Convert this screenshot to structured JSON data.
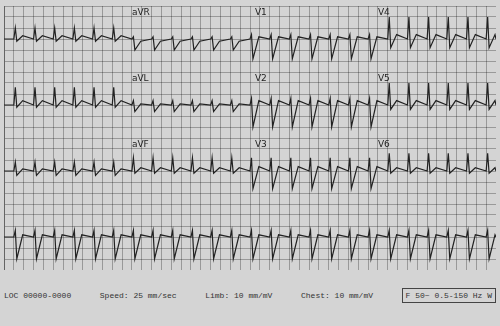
{
  "chart_data": [
    {
      "type": "line",
      "color": "#222222",
      "grid": true,
      "tick_labels": false,
      "xlim": [
        0,
        10
      ],
      "ylim": [
        -1.5,
        1.5
      ],
      "xticks": [
        0,
        0.2,
        0.4,
        0.6,
        0.8,
        1,
        1.2,
        1.4,
        1.6,
        1.8,
        2,
        2.2,
        2.4,
        2.6,
        2.8,
        3,
        3.2,
        3.4,
        3.6,
        3.8,
        4,
        4.2,
        4.4,
        4.6,
        4.8,
        5,
        5.2,
        5.4,
        5.6,
        5.8,
        6,
        6.2,
        6.4,
        6.6,
        6.8,
        7,
        7.2,
        7.4,
        7.6,
        7.8,
        8,
        8.2,
        8.4,
        8.6,
        8.8,
        9,
        9.2,
        9.4,
        9.6,
        9.8,
        10
      ],
      "yticks": [
        -1.5,
        -1,
        -0.5,
        0,
        0.5,
        1,
        1.5
      ],
      "annotations": [
        {
          "x": 2.6,
          "text": "aVR"
        },
        {
          "x": 5.1,
          "text": "V1"
        },
        {
          "x": 7.6,
          "text": "V4"
        }
      ],
      "x": [
        0,
        0.2,
        0.23,
        0.26,
        0.38,
        0.6,
        0.63,
        0.66,
        0.78,
        1.0,
        1.03,
        1.06,
        1.18,
        1.4,
        1.43,
        1.46,
        1.58,
        1.8,
        1.83,
        1.86,
        1.98,
        2.2,
        2.23,
        2.26,
        2.38,
        2.6,
        2.63,
        2.66,
        2.78,
        3.0,
        3.03,
        3.06,
        3.18,
        3.4,
        3.43,
        3.46,
        3.58,
        3.8,
        3.83,
        3.86,
        3.98,
        4.2,
        4.23,
        4.26,
        4.38,
        4.6,
        4.63,
        4.66,
        4.78,
        5.0,
        5.03,
        5.06,
        5.18,
        5.4,
        5.43,
        5.46,
        5.58,
        5.8,
        5.83,
        5.86,
        5.98,
        6.2,
        6.23,
        6.26,
        6.38,
        6.6,
        6.63,
        6.66,
        6.78,
        7.0,
        7.03,
        7.06,
        7.18,
        7.4,
        7.43,
        7.46,
        7.58,
        7.8,
        7.83,
        7.86,
        7.98,
        8.2,
        8.23,
        8.26,
        8.38,
        8.6,
        8.63,
        8.66,
        8.78,
        9.0,
        9.03,
        9.06,
        9.18,
        9.4,
        9.43,
        9.46,
        9.58,
        9.8,
        9.83,
        9.86,
        9.98,
        10
      ],
      "values": [
        0,
        0,
        0.5,
        -0.1,
        0.15,
        0,
        0.5,
        -0.1,
        0.15,
        0,
        0.5,
        -0.1,
        0.15,
        0,
        0.5,
        -0.1,
        0.15,
        0,
        0.5,
        -0.1,
        0.15,
        0,
        0.5,
        -0.1,
        0.15,
        0,
        0.1,
        -0.5,
        -0.1,
        0,
        0.1,
        -0.5,
        -0.1,
        0,
        0.1,
        -0.5,
        -0.1,
        0,
        0.1,
        -0.5,
        -0.1,
        0,
        0.1,
        -0.5,
        -0.1,
        0,
        0.1,
        -0.5,
        -0.1,
        0,
        0.2,
        -0.9,
        0.1,
        0,
        0.2,
        -0.9,
        0.1,
        0,
        0.2,
        -0.9,
        0.1,
        0,
        0.2,
        -0.9,
        0.1,
        0,
        0.2,
        -0.9,
        0.1,
        0,
        0.2,
        -0.9,
        0.1,
        0,
        0.2,
        -0.9,
        0.1,
        0,
        1.0,
        -0.4,
        0.2,
        0,
        1.0,
        -0.4,
        0.2,
        0,
        1.0,
        -0.4,
        0.2,
        0,
        1.0,
        -0.4,
        0.2,
        0,
        1.0,
        -0.4,
        0.2,
        0,
        1.0,
        -0.4,
        0.2,
        0
      ]
    },
    {
      "type": "line",
      "color": "#222222",
      "grid": true,
      "tick_labels": false,
      "xlim": [
        0,
        10
      ],
      "ylim": [
        -1.5,
        1.5
      ],
      "xticks": [
        0,
        0.2,
        0.4,
        0.6,
        0.8,
        1,
        1.2,
        1.4,
        1.6,
        1.8,
        2,
        2.2,
        2.4,
        2.6,
        2.8,
        3,
        3.2,
        3.4,
        3.6,
        3.8,
        4,
        4.2,
        4.4,
        4.6,
        4.8,
        5,
        5.2,
        5.4,
        5.6,
        5.8,
        6,
        6.2,
        6.4,
        6.6,
        6.8,
        7,
        7.2,
        7.4,
        7.6,
        7.8,
        8,
        8.2,
        8.4,
        8.6,
        8.8,
        9,
        9.2,
        9.4,
        9.6,
        9.8,
        10
      ],
      "yticks": [
        -1.5,
        -1,
        -0.5,
        0,
        0.5,
        1,
        1.5
      ],
      "annotations": [
        {
          "x": 2.6,
          "text": "aVL"
        },
        {
          "x": 5.1,
          "text": "V2"
        },
        {
          "x": 7.6,
          "text": "V5"
        }
      ],
      "x": [
        0,
        0.2,
        0.23,
        0.26,
        0.38,
        0.6,
        0.63,
        0.66,
        0.78,
        1.0,
        1.03,
        1.06,
        1.18,
        1.4,
        1.43,
        1.46,
        1.58,
        1.8,
        1.83,
        1.86,
        1.98,
        2.2,
        2.23,
        2.26,
        2.38,
        2.6,
        2.63,
        2.66,
        2.78,
        3.0,
        3.03,
        3.06,
        3.18,
        3.4,
        3.43,
        3.46,
        3.58,
        3.8,
        3.83,
        3.86,
        3.98,
        4.2,
        4.23,
        4.26,
        4.38,
        4.6,
        4.63,
        4.66,
        4.78,
        5.0,
        5.03,
        5.06,
        5.18,
        5.4,
        5.43,
        5.46,
        5.58,
        5.8,
        5.83,
        5.86,
        5.98,
        6.2,
        6.23,
        6.26,
        6.38,
        6.6,
        6.63,
        6.66,
        6.78,
        7.0,
        7.03,
        7.06,
        7.18,
        7.4,
        7.43,
        7.46,
        7.58,
        7.8,
        7.83,
        7.86,
        7.98,
        8.2,
        8.23,
        8.26,
        8.38,
        8.6,
        8.63,
        8.66,
        8.78,
        9.0,
        9.03,
        9.06,
        9.18,
        9.4,
        9.43,
        9.46,
        9.58,
        9.8,
        9.83,
        9.86,
        9.98,
        10
      ],
      "values": [
        0,
        0,
        0.8,
        -0.1,
        0.2,
        0,
        0.8,
        -0.1,
        0.2,
        0,
        0.8,
        -0.1,
        0.2,
        0,
        0.8,
        -0.1,
        0.2,
        0,
        0.8,
        -0.1,
        0.2,
        0,
        0.8,
        -0.1,
        0.2,
        0,
        0.2,
        -0.3,
        0.05,
        0,
        0.2,
        -0.3,
        0.05,
        0,
        0.2,
        -0.3,
        0.05,
        0,
        0.2,
        -0.3,
        0.05,
        0,
        0.2,
        -0.3,
        0.05,
        0,
        0.2,
        -0.3,
        0.05,
        0,
        0.3,
        -1.0,
        0.2,
        0,
        0.3,
        -1.0,
        0.2,
        0,
        0.3,
        -1.0,
        0.2,
        0,
        0.3,
        -1.0,
        0.2,
        0,
        0.3,
        -1.0,
        0.2,
        0,
        0.3,
        -1.0,
        0.2,
        0,
        0.3,
        -1.0,
        0.2,
        0,
        1.0,
        -0.2,
        0.2,
        0,
        1.0,
        -0.2,
        0.2,
        0,
        1.0,
        -0.2,
        0.2,
        0,
        1.0,
        -0.2,
        0.2,
        0,
        1.0,
        -0.2,
        0.2,
        0,
        1.0,
        -0.2,
        0.2,
        0
      ]
    },
    {
      "type": "line",
      "color": "#222222",
      "grid": true,
      "tick_labels": false,
      "xlim": [
        0,
        10
      ],
      "ylim": [
        -1.5,
        1.5
      ],
      "xticks": [
        0,
        0.2,
        0.4,
        0.6,
        0.8,
        1,
        1.2,
        1.4,
        1.6,
        1.8,
        2,
        2.2,
        2.4,
        2.6,
        2.8,
        3,
        3.2,
        3.4,
        3.6,
        3.8,
        4,
        4.2,
        4.4,
        4.6,
        4.8,
        5,
        5.2,
        5.4,
        5.6,
        5.8,
        6,
        6.2,
        6.4,
        6.6,
        6.8,
        7,
        7.2,
        7.4,
        7.6,
        7.8,
        8,
        8.2,
        8.4,
        8.6,
        8.8,
        9,
        9.2,
        9.4,
        9.6,
        9.8,
        10
      ],
      "yticks": [
        -1.5,
        -1,
        -0.5,
        0,
        0.5,
        1,
        1.5
      ],
      "annotations": [
        {
          "x": 2.6,
          "text": "aVF"
        },
        {
          "x": 5.1,
          "text": "V3"
        },
        {
          "x": 7.6,
          "text": "V6"
        }
      ],
      "x": [
        0,
        0.2,
        0.23,
        0.26,
        0.38,
        0.6,
        0.63,
        0.66,
        0.78,
        1.0,
        1.03,
        1.06,
        1.18,
        1.4,
        1.43,
        1.46,
        1.58,
        1.8,
        1.83,
        1.86,
        1.98,
        2.2,
        2.23,
        2.26,
        2.38,
        2.6,
        2.63,
        2.66,
        2.78,
        3.0,
        3.03,
        3.06,
        3.18,
        3.4,
        3.43,
        3.46,
        3.58,
        3.8,
        3.83,
        3.86,
        3.98,
        4.2,
        4.23,
        4.26,
        4.38,
        4.6,
        4.63,
        4.66,
        4.78,
        5.0,
        5.03,
        5.06,
        5.18,
        5.4,
        5.43,
        5.46,
        5.58,
        5.8,
        5.83,
        5.86,
        5.98,
        6.2,
        6.23,
        6.26,
        6.38,
        6.6,
        6.63,
        6.66,
        6.78,
        7.0,
        7.03,
        7.06,
        7.18,
        7.4,
        7.43,
        7.46,
        7.58,
        7.8,
        7.83,
        7.86,
        7.98,
        8.2,
        8.23,
        8.26,
        8.38,
        8.6,
        8.63,
        8.66,
        8.78,
        9.0,
        9.03,
        9.06,
        9.18,
        9.4,
        9.43,
        9.46,
        9.58,
        9.8,
        9.83,
        9.86,
        9.98,
        10
      ],
      "values": [
        0,
        0,
        0.4,
        -0.2,
        0.1,
        0,
        0.4,
        -0.2,
        0.1,
        0,
        0.4,
        -0.2,
        0.1,
        0,
        0.4,
        -0.2,
        0.1,
        0,
        0.4,
        -0.2,
        0.1,
        0,
        0.4,
        -0.2,
        0.1,
        0,
        0.6,
        -0.1,
        0.15,
        0,
        0.6,
        -0.1,
        0.15,
        0,
        0.6,
        -0.1,
        0.15,
        0,
        0.6,
        -0.1,
        0.15,
        0,
        0.6,
        -0.1,
        0.15,
        0,
        0.6,
        -0.1,
        0.15,
        0,
        0.6,
        -0.8,
        0.2,
        0,
        0.6,
        -0.8,
        0.2,
        0,
        0.6,
        -0.8,
        0.2,
        0,
        0.6,
        -0.8,
        0.2,
        0,
        0.6,
        -0.8,
        0.2,
        0,
        0.6,
        -0.8,
        0.2,
        0,
        0.6,
        -0.8,
        0.2,
        0,
        0.8,
        -0.1,
        0.15,
        0,
        0.8,
        -0.1,
        0.15,
        0,
        0.8,
        -0.1,
        0.15,
        0,
        0.8,
        -0.1,
        0.15,
        0,
        0.8,
        -0.1,
        0.15,
        0,
        0.8,
        -0.1,
        0.15,
        0
      ]
    },
    {
      "type": "line",
      "color": "#222222",
      "grid": true,
      "tick_labels": false,
      "xlim": [
        0,
        10
      ],
      "ylim": [
        -1.5,
        1.5
      ],
      "xticks": [
        0,
        0.2,
        0.4,
        0.6,
        0.8,
        1,
        1.2,
        1.4,
        1.6,
        1.8,
        2,
        2.2,
        2.4,
        2.6,
        2.8,
        3,
        3.2,
        3.4,
        3.6,
        3.8,
        4,
        4.2,
        4.4,
        4.6,
        4.8,
        5,
        5.2,
        5.4,
        5.6,
        5.8,
        6,
        6.2,
        6.4,
        6.6,
        6.8,
        7,
        7.2,
        7.4,
        7.6,
        7.8,
        8,
        8.2,
        8.4,
        8.6,
        8.8,
        9,
        9.2,
        9.4,
        9.6,
        9.8,
        10
      ],
      "yticks": [
        -1.5,
        -1,
        -0.5,
        0,
        0.5,
        1,
        1.5
      ],
      "x": [
        0,
        0.2,
        0.23,
        0.26,
        0.38,
        0.6,
        0.63,
        0.66,
        0.78,
        1.0,
        1.03,
        1.06,
        1.18,
        1.4,
        1.43,
        1.46,
        1.58,
        1.8,
        1.83,
        1.86,
        1.98,
        2.2,
        2.23,
        2.26,
        2.38,
        2.6,
        2.63,
        2.66,
        2.78,
        3.0,
        3.03,
        3.06,
        3.18,
        3.4,
        3.43,
        3.46,
        3.58,
        3.8,
        3.83,
        3.86,
        3.98,
        4.2,
        4.23,
        4.26,
        4.38,
        4.6,
        4.63,
        4.66,
        4.78,
        5.0,
        5.03,
        5.06,
        5.18,
        5.4,
        5.43,
        5.46,
        5.58,
        5.8,
        5.83,
        5.86,
        5.98,
        6.2,
        6.23,
        6.26,
        6.38,
        6.6,
        6.63,
        6.66,
        6.78,
        7.0,
        7.03,
        7.06,
        7.18,
        7.4,
        7.43,
        7.46,
        7.58,
        7.8,
        7.83,
        7.86,
        7.98,
        8.2,
        8.23,
        8.26,
        8.38,
        8.6,
        8.63,
        8.66,
        8.78,
        9.0,
        9.03,
        9.06,
        9.18,
        9.4,
        9.43,
        9.46,
        9.58,
        9.8,
        9.83,
        9.86,
        9.98,
        10
      ],
      "values": [
        0,
        0,
        0.3,
        -1.0,
        0.1,
        0,
        0.3,
        -1.0,
        0.1,
        0,
        0.3,
        -1.0,
        0.1,
        0,
        0.3,
        -1.0,
        0.1,
        0,
        0.3,
        -1.0,
        0.1,
        0,
        0.3,
        -1.0,
        0.1,
        0,
        0.3,
        -1.0,
        0.1,
        0,
        0.3,
        -1.0,
        0.1,
        0,
        0.3,
        -1.0,
        0.1,
        0,
        0.3,
        -1.0,
        0.1,
        0,
        0.3,
        -1.0,
        0.1,
        0,
        0.3,
        -1.0,
        0.1,
        0,
        0.3,
        -1.0,
        0.1,
        0,
        0.3,
        -1.0,
        0.1,
        0,
        0.3,
        -1.0,
        0.1,
        0,
        0.3,
        -1.0,
        0.1,
        0,
        0.3,
        -1.0,
        0.1,
        0,
        0.3,
        -1.0,
        0.1,
        0,
        0.3,
        -1.0,
        0.1,
        0,
        0.3,
        -1.0,
        0.1,
        0,
        0.3,
        -1.0,
        0.1,
        0,
        0.3,
        -1.0,
        0.1,
        0,
        0.3,
        -1.0,
        0.1,
        0,
        0.3,
        -1.0,
        0.1,
        0,
        0.3,
        -1.0,
        0.1,
        0
      ]
    }
  ],
  "footer": [
    "LOC 00000-0000",
    "Speed: 25 mm/sec",
    "Limb: 10 mm/mV",
    "Chest: 10 mm/mV",
    "F 50~ 0.5-150 Hz W"
  ]
}
